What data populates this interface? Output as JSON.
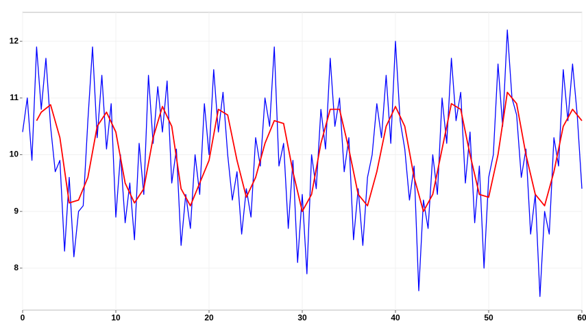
{
  "chart_data": {
    "type": "line",
    "xlim": [
      0,
      60
    ],
    "ylim": [
      7.26,
      12.51
    ],
    "xticks": [
      0,
      10,
      20,
      30,
      40,
      50,
      60
    ],
    "yticks": [
      8,
      9,
      10,
      11,
      12
    ],
    "grid": true,
    "series": [
      {
        "color": "#0000ff",
        "x": [
          0,
          0.5,
          1,
          1.5,
          2,
          2.5,
          3,
          3.5,
          4,
          4.5,
          5,
          5.5,
          6,
          6.5,
          7,
          7.5,
          8,
          8.5,
          9,
          9.5,
          10,
          10.5,
          11,
          11.5,
          12,
          12.5,
          13,
          13.5,
          14,
          14.5,
          15,
          15.5,
          16,
          16.5,
          17,
          17.5,
          18,
          18.5,
          19,
          19.5,
          20,
          20.5,
          21,
          21.5,
          22,
          22.5,
          23,
          23.5,
          24,
          24.5,
          25,
          25.5,
          26,
          26.5,
          27,
          27.5,
          28,
          28.5,
          29,
          29.5,
          30,
          30.5,
          31,
          31.5,
          32,
          32.5,
          33,
          33.5,
          34,
          34.5,
          35,
          35.5,
          36,
          36.5,
          37,
          37.5,
          38,
          38.5,
          39,
          39.5,
          40,
          40.5,
          41,
          41.5,
          42,
          42.5,
          43,
          43.5,
          44,
          44.5,
          45,
          45.5,
          46,
          46.5,
          47,
          47.5,
          48,
          48.5,
          49,
          49.5,
          50,
          50.5,
          51,
          51.5,
          52,
          52.5,
          53,
          53.5,
          54,
          54.5,
          55,
          55.5,
          56,
          56.5,
          57,
          57.5,
          58,
          58.5,
          59,
          59.5,
          60
        ],
        "values": [
          10.4,
          11.0,
          9.9,
          11.9,
          10.8,
          11.7,
          10.5,
          9.7,
          9.9,
          8.3,
          9.6,
          8.2,
          9.0,
          9.1,
          10.6,
          11.9,
          10.3,
          11.4,
          10.1,
          10.9,
          8.9,
          10.0,
          8.8,
          9.5,
          8.5,
          10.2,
          9.3,
          11.4,
          10.2,
          11.2,
          10.4,
          11.3,
          9.5,
          10.1,
          8.4,
          9.3,
          8.7,
          10.0,
          9.3,
          10.9,
          10.0,
          11.5,
          10.4,
          11.1,
          10.0,
          9.2,
          9.7,
          8.6,
          9.4,
          8.9,
          10.3,
          9.8,
          11.0,
          10.5,
          11.9,
          9.8,
          10.2,
          8.7,
          9.9,
          8.1,
          9.3,
          7.9,
          10.0,
          9.4,
          10.8,
          10.1,
          11.7,
          10.5,
          11.0,
          9.7,
          10.3,
          8.5,
          9.4,
          8.4,
          9.6,
          10.0,
          10.9,
          10.3,
          11.4,
          10.2,
          12.0,
          10.6,
          10.1,
          9.2,
          9.8,
          7.6,
          9.2,
          8.7,
          10.0,
          9.3,
          11.0,
          10.2,
          11.7,
          10.6,
          11.1,
          9.5,
          10.4,
          8.8,
          9.8,
          8.0,
          9.6,
          10.0,
          11.6,
          10.5,
          12.2,
          11.0,
          10.7,
          9.6,
          10.1,
          8.6,
          9.3,
          7.5,
          9.0,
          8.6,
          10.3,
          9.8,
          11.5,
          10.6,
          11.6,
          10.7,
          9.4
        ]
      },
      {
        "color": "#ff0000",
        "x": [
          1.5,
          2,
          3,
          4,
          5,
          6,
          7,
          8,
          9,
          10,
          11,
          12,
          13,
          14,
          15,
          16,
          17,
          18,
          19,
          20,
          21,
          22,
          23,
          24,
          25,
          26,
          27,
          28,
          29,
          30,
          31,
          32,
          33,
          34,
          35,
          36,
          37,
          38,
          39,
          40,
          41,
          42,
          43,
          44,
          45,
          46,
          47,
          48,
          49,
          50,
          51,
          52,
          53,
          54,
          55,
          56,
          57,
          58,
          59,
          60
        ],
        "values": [
          10.6,
          10.75,
          10.88,
          10.3,
          9.15,
          9.2,
          9.6,
          10.5,
          10.75,
          10.4,
          9.5,
          9.15,
          9.4,
          10.3,
          10.85,
          10.5,
          9.4,
          9.1,
          9.5,
          9.9,
          10.8,
          10.7,
          9.9,
          9.25,
          9.6,
          10.2,
          10.6,
          10.55,
          9.7,
          9.0,
          9.3,
          10.2,
          10.8,
          10.8,
          10.1,
          9.3,
          9.1,
          9.7,
          10.5,
          10.85,
          10.5,
          9.6,
          9.0,
          9.3,
          10.1,
          10.9,
          10.8,
          10.0,
          9.3,
          9.25,
          10.0,
          11.1,
          10.9,
          10.0,
          9.3,
          9.1,
          9.7,
          10.5,
          10.8,
          10.6
        ]
      }
    ]
  }
}
